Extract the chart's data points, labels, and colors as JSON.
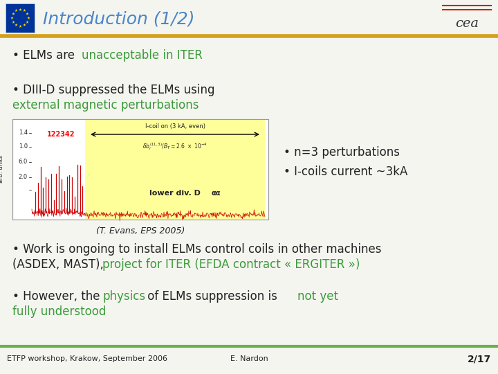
{
  "title": "Introduction (1/2)",
  "title_color": "#4a86c8",
  "title_fontsize": 18,
  "bg_color": "#f5f5f0",
  "header_line_color": "#d4a017",
  "footer_line_color": "#6ab04c",
  "bullet_color": "#222222",
  "green_color": "#3a9a3a",
  "red_color": "#cc0000",
  "caption": "(T. Evans, EPS 2005)",
  "footer_left": "ETFP workshop, Krakow, September 2006",
  "footer_center": "E. Nardon",
  "footer_right": "2/17",
  "footer_fontsize": 8,
  "main_fontsize": 12,
  "small_fontsize": 9
}
